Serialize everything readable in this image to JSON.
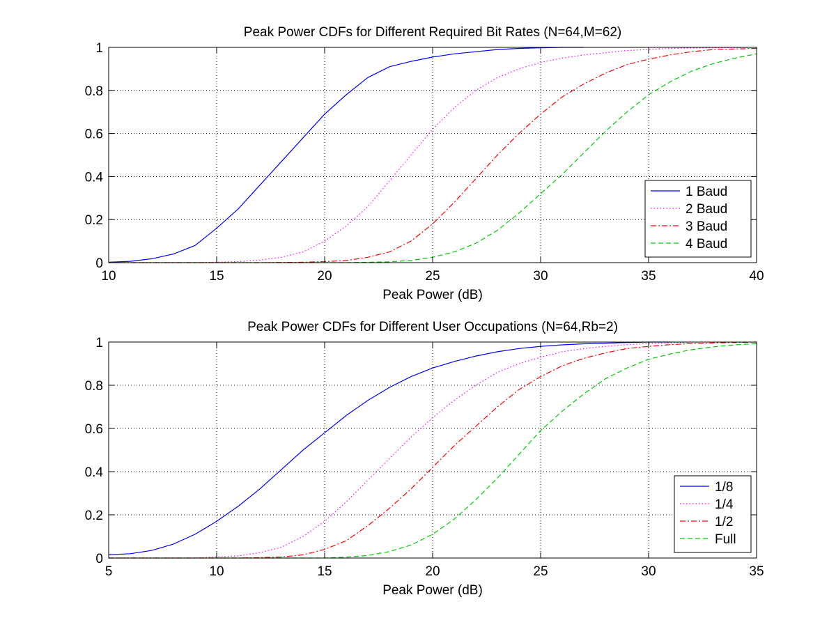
{
  "chart_data": [
    {
      "type": "line",
      "title": "Peak Power CDFs for Different Required Bit Rates (N=64,M=62)",
      "xlabel": "Peak Power (dB)",
      "ylabel": "",
      "xlim": [
        10,
        40
      ],
      "ylim": [
        0,
        1
      ],
      "xticks": [
        "10",
        "15",
        "20",
        "25",
        "30",
        "35",
        "40"
      ],
      "yticks": [
        "0",
        "0.2",
        "0.4",
        "0.6",
        "0.8",
        "1"
      ],
      "grid": true,
      "legend": "bottom-right",
      "series": [
        {
          "name": "1 Baud",
          "color": "#0000ff",
          "dash": "solid",
          "x": [
            10,
            11,
            12,
            13,
            14,
            15,
            16,
            17,
            18,
            19,
            20,
            21,
            22,
            23,
            24,
            25,
            26,
            27,
            28,
            29,
            30,
            31,
            32
          ],
          "y": [
            0.002,
            0.006,
            0.018,
            0.04,
            0.08,
            0.16,
            0.25,
            0.36,
            0.47,
            0.58,
            0.69,
            0.78,
            0.86,
            0.91,
            0.935,
            0.955,
            0.97,
            0.98,
            0.99,
            0.995,
            0.998,
            1.0,
            1.0
          ]
        },
        {
          "name": "2 Baud",
          "color": "#ff00ff",
          "dash": "dotted",
          "x": [
            10,
            14,
            16,
            17,
            18,
            19,
            20,
            21,
            22,
            23,
            24,
            25,
            26,
            27,
            28,
            29,
            30,
            31,
            32,
            33,
            34,
            35,
            36,
            38,
            40
          ],
          "y": [
            0,
            0,
            0.005,
            0.012,
            0.025,
            0.05,
            0.1,
            0.17,
            0.26,
            0.38,
            0.5,
            0.62,
            0.72,
            0.8,
            0.86,
            0.9,
            0.93,
            0.95,
            0.965,
            0.975,
            0.985,
            0.99,
            0.995,
            0.998,
            1.0
          ]
        },
        {
          "name": "3 Baud",
          "color": "#ff0000",
          "dash": "dashdot",
          "x": [
            10,
            17,
            19,
            20,
            21,
            22,
            23,
            24,
            25,
            26,
            27,
            28,
            29,
            30,
            31,
            32,
            33,
            34,
            35,
            36,
            37,
            38,
            40
          ],
          "y": [
            0,
            0,
            0.002,
            0.005,
            0.01,
            0.025,
            0.05,
            0.1,
            0.18,
            0.28,
            0.39,
            0.5,
            0.6,
            0.69,
            0.77,
            0.83,
            0.88,
            0.92,
            0.945,
            0.965,
            0.98,
            0.99,
            0.995
          ]
        },
        {
          "name": "4 Baud",
          "color": "#00cc00",
          "dash": "dashed",
          "x": [
            10,
            21,
            23,
            24,
            25,
            26,
            27,
            28,
            29,
            30,
            31,
            32,
            33,
            34,
            35,
            36,
            37,
            38,
            39,
            40
          ],
          "y": [
            0,
            0,
            0.004,
            0.01,
            0.025,
            0.05,
            0.09,
            0.15,
            0.23,
            0.32,
            0.41,
            0.51,
            0.61,
            0.7,
            0.78,
            0.84,
            0.89,
            0.925,
            0.95,
            0.97
          ]
        }
      ]
    },
    {
      "type": "line",
      "title": "Peak Power CDFs for Different User Occupations (N=64,Rb=2)",
      "xlabel": "Peak Power (dB)",
      "ylabel": "",
      "xlim": [
        5,
        35
      ],
      "ylim": [
        0,
        1
      ],
      "xticks": [
        "5",
        "10",
        "15",
        "20",
        "25",
        "30",
        "35"
      ],
      "yticks": [
        "0",
        "0.2",
        "0.4",
        "0.6",
        "0.8",
        "1"
      ],
      "grid": true,
      "legend": "bottom-right",
      "series": [
        {
          "name": "1/8",
          "color": "#0000ff",
          "dash": "solid",
          "x": [
            5,
            6,
            7,
            8,
            9,
            10,
            11,
            12,
            13,
            14,
            15,
            16,
            17,
            18,
            19,
            20,
            21,
            22,
            23,
            24,
            25,
            26,
            27,
            28,
            29,
            30,
            31
          ],
          "y": [
            0.015,
            0.02,
            0.035,
            0.065,
            0.11,
            0.17,
            0.24,
            0.32,
            0.41,
            0.5,
            0.58,
            0.66,
            0.73,
            0.79,
            0.84,
            0.88,
            0.91,
            0.935,
            0.955,
            0.97,
            0.98,
            0.987,
            0.992,
            0.995,
            0.998,
            1.0,
            1.0
          ]
        },
        {
          "name": "1/4",
          "color": "#ff00ff",
          "dash": "dotted",
          "x": [
            5,
            9,
            10,
            11,
            12,
            13,
            14,
            15,
            16,
            17,
            18,
            19,
            20,
            21,
            22,
            23,
            24,
            25,
            26,
            27,
            28,
            29,
            30,
            31,
            32
          ],
          "y": [
            0,
            0,
            0.005,
            0.01,
            0.025,
            0.05,
            0.1,
            0.17,
            0.26,
            0.36,
            0.46,
            0.56,
            0.65,
            0.73,
            0.8,
            0.86,
            0.9,
            0.93,
            0.955,
            0.97,
            0.98,
            0.988,
            0.993,
            0.996,
            1.0
          ]
        },
        {
          "name": "1/2",
          "color": "#ff0000",
          "dash": "dashdot",
          "x": [
            5,
            11,
            12,
            13,
            14,
            15,
            16,
            17,
            18,
            19,
            20,
            21,
            22,
            23,
            24,
            25,
            26,
            27,
            28,
            29,
            30,
            31,
            32,
            33,
            35
          ],
          "y": [
            0,
            0,
            0.002,
            0.005,
            0.015,
            0.04,
            0.08,
            0.15,
            0.23,
            0.32,
            0.42,
            0.52,
            0.61,
            0.7,
            0.78,
            0.84,
            0.89,
            0.925,
            0.95,
            0.97,
            0.98,
            0.988,
            0.993,
            0.996,
            1.0
          ]
        },
        {
          "name": "Full",
          "color": "#00cc00",
          "dash": "dashed",
          "x": [
            5,
            15,
            16,
            17,
            18,
            19,
            20,
            21,
            22,
            23,
            24,
            25,
            26,
            27,
            28,
            29,
            30,
            31,
            32,
            33,
            34,
            35
          ],
          "y": [
            0,
            0,
            0.004,
            0.012,
            0.03,
            0.06,
            0.11,
            0.18,
            0.27,
            0.37,
            0.48,
            0.59,
            0.68,
            0.76,
            0.83,
            0.88,
            0.92,
            0.945,
            0.965,
            0.978,
            0.987,
            0.993
          ]
        }
      ]
    }
  ]
}
